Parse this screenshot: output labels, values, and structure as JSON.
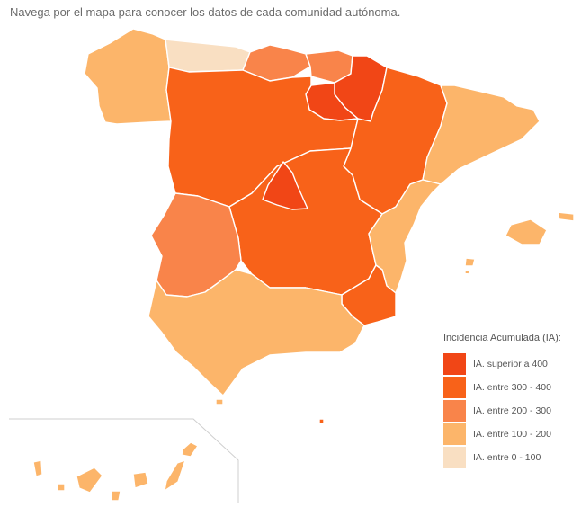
{
  "intro": "Navega por el mapa para conocer los datos de cada comunidad autónoma.",
  "legend": {
    "title": "Incidencia Acumulada (IA):",
    "items": [
      {
        "label": "IA. superior a 400",
        "color": "#f14616"
      },
      {
        "label": "IA. entre 300 - 400",
        "color": "#f86219"
      },
      {
        "label": "IA. entre 200 - 300",
        "color": "#f9844a"
      },
      {
        "label": "IA. entre 100 - 200",
        "color": "#fcb56a"
      },
      {
        "label": "IA. entre 0 - 100",
        "color": "#f9dfc2"
      }
    ]
  },
  "regions": [
    {
      "id": "galicia",
      "category": 3
    },
    {
      "id": "asturias",
      "category": 4
    },
    {
      "id": "cantabria",
      "category": 2
    },
    {
      "id": "pais-vasco",
      "category": 2
    },
    {
      "id": "navarra",
      "category": 0
    },
    {
      "id": "la-rioja",
      "category": 0
    },
    {
      "id": "castilla-y-leon",
      "category": 1
    },
    {
      "id": "aragon",
      "category": 1
    },
    {
      "id": "cataluna",
      "category": 3
    },
    {
      "id": "madrid",
      "category": 0
    },
    {
      "id": "castilla-la-mancha",
      "category": 1
    },
    {
      "id": "comunidad-valenciana",
      "category": 3
    },
    {
      "id": "extremadura",
      "category": 2
    },
    {
      "id": "murcia",
      "category": 1
    },
    {
      "id": "andalucia",
      "category": 3
    },
    {
      "id": "baleares",
      "category": 3
    },
    {
      "id": "canarias",
      "category": 3
    },
    {
      "id": "ceuta",
      "category": 3
    },
    {
      "id": "melilla",
      "category": 1
    }
  ]
}
